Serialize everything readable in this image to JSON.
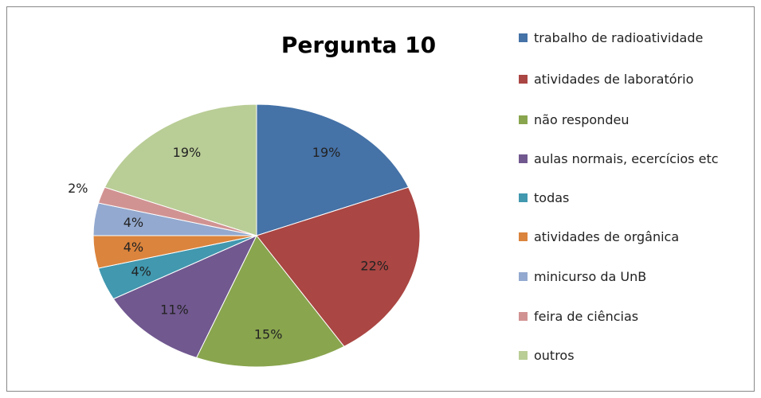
{
  "chart_data": {
    "type": "pie",
    "title": "Pergunta 10",
    "categories": [
      "trabalho de radioatividade",
      "atividades de laboratório",
      "não respondeu",
      "aulas normais, ecercícios etc",
      "todas",
      "atividades de orgânica",
      "minicurso da UnB",
      "feira de ciências",
      "outros"
    ],
    "values": [
      19,
      22,
      15,
      11,
      4,
      4,
      4,
      2,
      19
    ],
    "value_labels": [
      "19%",
      "22%",
      "15%",
      "11%",
      "4%",
      "4%",
      "4%",
      "2%",
      "19%"
    ],
    "colors": [
      "#4572a7",
      "#aa4643",
      "#89a54e",
      "#71588f",
      "#4198af",
      "#db843d",
      "#93a9cf",
      "#d19392",
      "#b9cd96"
    ]
  }
}
